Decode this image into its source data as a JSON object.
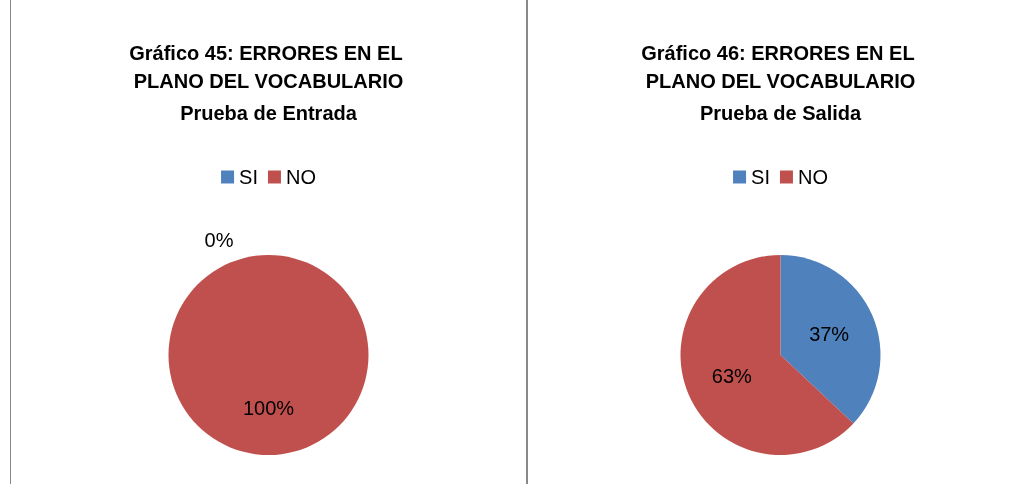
{
  "chart_data": [
    {
      "type": "pie",
      "title": "Gráfico 45: ERRORES EN EL PLANO DEL VOCABULARIO",
      "subtitle": "Prueba de Entrada",
      "categories": [
        "SI",
        "NO"
      ],
      "values": [
        0,
        100
      ],
      "colors": [
        "#4f81bd",
        "#c0504d"
      ],
      "value_labels": [
        "0%",
        "100%"
      ],
      "legend": "top"
    },
    {
      "type": "pie",
      "title": "Gráfico 46: ERRORES EN EL PLANO DEL VOCABULARIO",
      "subtitle": "Prueba de Salida",
      "categories": [
        "SI",
        "NO"
      ],
      "values": [
        37,
        63
      ],
      "colors": [
        "#4f81bd",
        "#c0504d"
      ],
      "value_labels": [
        "37%",
        "63%"
      ],
      "legend": "top"
    }
  ]
}
